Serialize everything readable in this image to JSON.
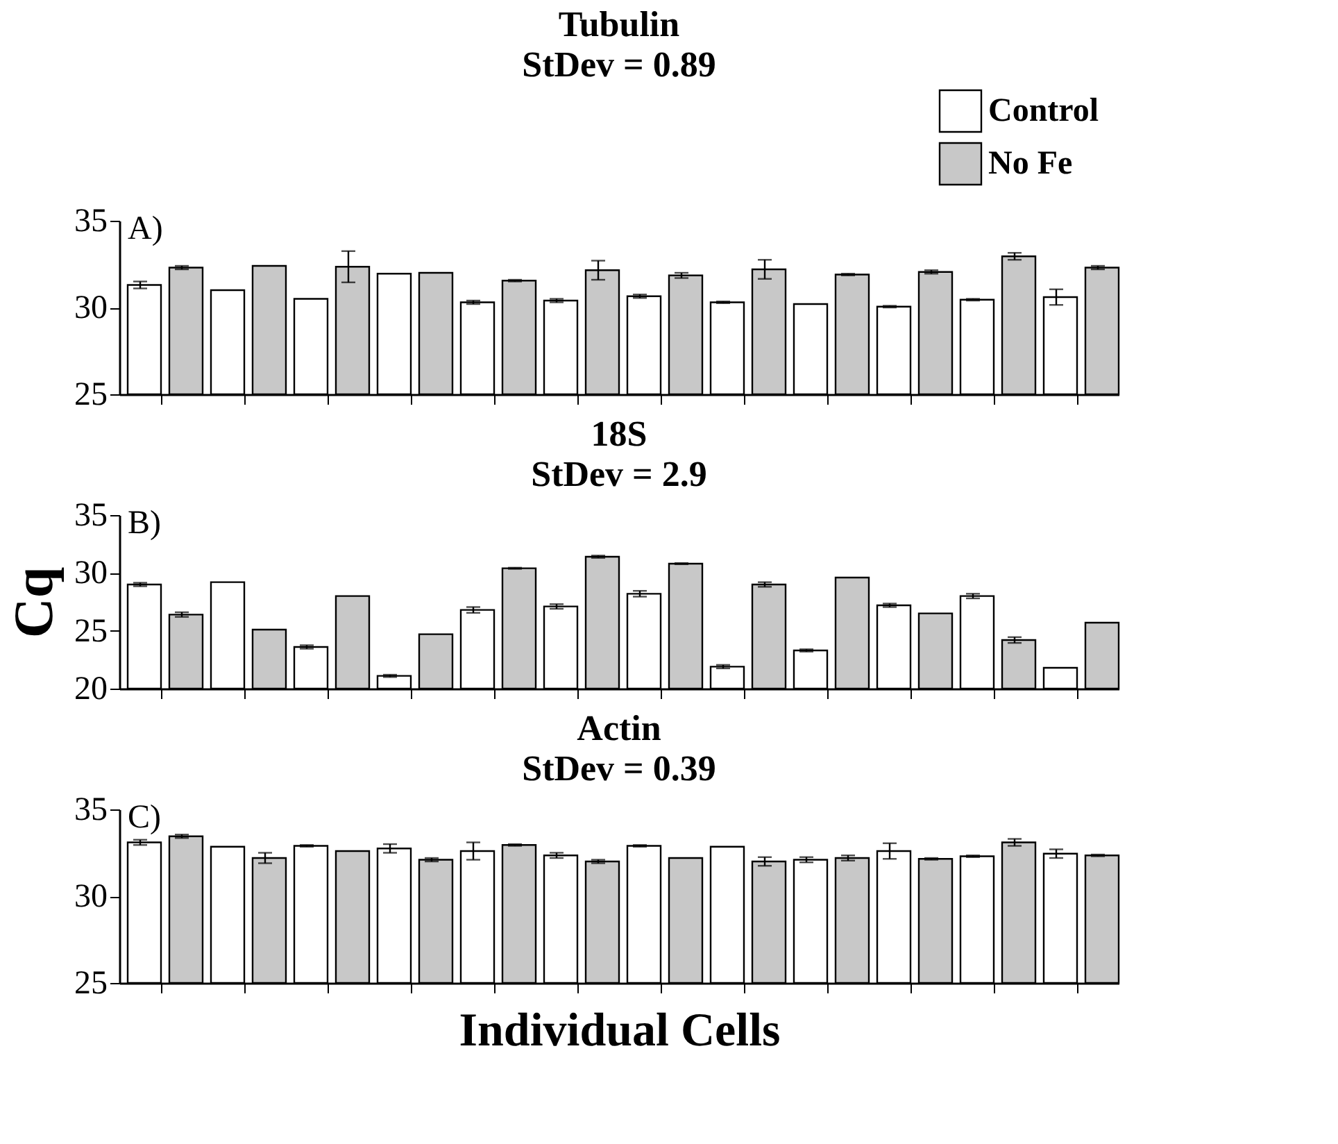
{
  "chart_data": [
    {
      "type": "bar",
      "title": "Tubulin",
      "subtitle": "StDev = 0.89",
      "annotations": [
        "A)"
      ],
      "categories": [
        null,
        null,
        null,
        null,
        null,
        null,
        null,
        null,
        null,
        null,
        null,
        null
      ],
      "ylim": [
        25,
        35
      ],
      "yticks": [
        25,
        30,
        35
      ],
      "grid": false,
      "legend": "top right",
      "tick_labels": "y",
      "series": [
        {
          "name": "Control",
          "color": "#ffffff",
          "values": [
            31.3,
            31.0,
            30.5,
            31.95,
            30.3,
            30.4,
            30.65,
            30.3,
            30.2,
            30.05,
            30.45,
            30.6
          ],
          "errors": [
            0.2,
            null,
            null,
            null,
            0.1,
            0.1,
            0.1,
            0.05,
            null,
            0.05,
            0.05,
            0.45
          ]
        },
        {
          "name": "No Fe",
          "color": "#c8c8c8",
          "values": [
            32.3,
            32.4,
            32.35,
            32.0,
            31.55,
            32.15,
            31.85,
            32.2,
            31.9,
            32.05,
            32.95,
            32.3
          ],
          "errors": [
            0.1,
            null,
            0.9,
            null,
            0.05,
            0.55,
            0.15,
            0.55,
            0.05,
            0.1,
            0.2,
            0.1
          ]
        }
      ]
    },
    {
      "type": "bar",
      "title": "18S",
      "subtitle": "StDev = 2.9",
      "annotations": [
        "B)"
      ],
      "ylabel": "Cq",
      "categories": [
        null,
        null,
        null,
        null,
        null,
        null,
        null,
        null,
        null,
        null,
        null,
        null
      ],
      "ylim": [
        20,
        35
      ],
      "yticks": [
        20,
        25,
        30,
        35
      ],
      "grid": false,
      "tick_labels": "y",
      "series": [
        {
          "color": "#ffffff",
          "values": [
            29.0,
            29.2,
            23.6,
            21.1,
            26.8,
            27.1,
            28.2,
            21.9,
            23.3,
            27.2,
            28.0,
            21.8
          ],
          "errors": [
            0.15,
            null,
            0.15,
            0.1,
            0.25,
            0.2,
            0.25,
            0.15,
            0.1,
            0.15,
            0.2,
            null
          ]
        },
        {
          "color": "#c8c8c8",
          "values": [
            26.4,
            25.1,
            28.0,
            24.7,
            30.4,
            31.4,
            30.8,
            29.0,
            29.6,
            26.5,
            24.2,
            25.7
          ],
          "errors": [
            0.2,
            null,
            null,
            null,
            0.05,
            0.1,
            0.05,
            0.2,
            null,
            null,
            0.25,
            null
          ]
        }
      ]
    },
    {
      "type": "bar",
      "title": "Actin",
      "subtitle": "StDev = 0.39",
      "annotations": [
        "C)"
      ],
      "xlabel": "Individual Cells",
      "categories": [
        null,
        null,
        null,
        null,
        null,
        null,
        null,
        null,
        null,
        null,
        null,
        null
      ],
      "ylim": [
        25,
        35
      ],
      "yticks": [
        25,
        30,
        35
      ],
      "grid": false,
      "tick_labels": "y",
      "series": [
        {
          "color": "#ffffff",
          "values": [
            33.1,
            32.85,
            32.9,
            32.75,
            32.6,
            32.35,
            32.9,
            32.85,
            32.1,
            32.6,
            32.3,
            32.45
          ],
          "errors": [
            0.15,
            null,
            0.05,
            0.25,
            0.5,
            0.15,
            0.05,
            null,
            0.15,
            0.45,
            0.05,
            0.25
          ]
        },
        {
          "color": "#c8c8c8",
          "values": [
            33.45,
            32.2,
            32.6,
            32.1,
            32.95,
            32.0,
            32.2,
            32.0,
            32.2,
            32.15,
            33.1,
            32.35
          ],
          "errors": [
            0.1,
            0.3,
            null,
            0.1,
            0.05,
            0.1,
            null,
            0.25,
            0.15,
            0.05,
            0.2,
            0.05
          ]
        }
      ]
    }
  ]
}
